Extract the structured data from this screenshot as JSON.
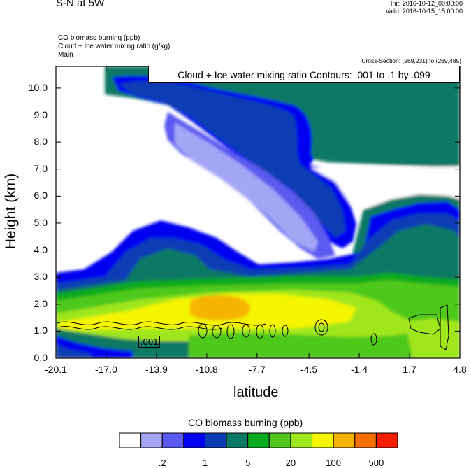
{
  "header": {
    "title": "S-N at 5W",
    "init": "Init: 2016-10-12_00:00:00",
    "valid": "Valid: 2016-10-15_15:00:00",
    "variables": [
      "CO biomass burning   (ppb)",
      "Cloud + Ice water mixing ratio   (g/kg)",
      "Main"
    ],
    "cross_section": "Cross-Section: (269,231) to (269,485)"
  },
  "contour_info": "Cloud + Ice water mixing ratio Contours: .001 to .1 by .099",
  "contour_inline_label": ".001",
  "chart_data": {
    "type": "heatmap",
    "xlabel": "latitude",
    "ylabel": "Height (km)",
    "xlim": [
      -20.1,
      4.8
    ],
    "ylim": [
      0.0,
      10.8
    ],
    "x_ticks": [
      "-20.1",
      "-17.0",
      "-13.9",
      "-10.8",
      "-7.7",
      "-4.5",
      "-1.4",
      "1.7",
      "4.8"
    ],
    "x_tick_values": [
      -20.1,
      -17.0,
      -13.9,
      -10.8,
      -7.7,
      -4.5,
      -1.4,
      1.7,
      4.8
    ],
    "y_ticks": [
      "0.0",
      "1.0",
      "2.0",
      "3.0",
      "4.0",
      "5.0",
      "6.0",
      "7.0",
      "8.0",
      "9.0",
      "10.0"
    ],
    "y_tick_values": [
      0,
      1,
      2,
      3,
      4,
      5,
      6,
      7,
      8,
      9,
      10
    ],
    "colorbar": {
      "title": "CO biomass burning  (ppb)",
      "colors": [
        "#ffffff",
        "#a5a5f5",
        "#5a5af0",
        "#0000f0",
        "#0a3cb4",
        "#0a7864",
        "#0aaa1e",
        "#50c81e",
        "#a0e61e",
        "#f5f500",
        "#f5b400",
        "#f56e00",
        "#f51e00"
      ],
      "labels": [
        ".2",
        "1",
        "5",
        "20",
        "100",
        "500"
      ]
    }
  }
}
